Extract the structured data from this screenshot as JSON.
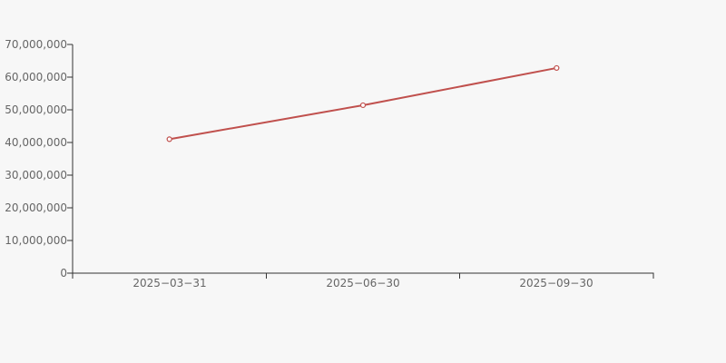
{
  "page": {
    "background_color": "#f7f7f7"
  },
  "chart_data": {
    "type": "line",
    "categories": [
      "2025−03−31",
      "2025−06−30",
      "2025−09−30"
    ],
    "values": [
      41000000,
      51400000,
      62800000
    ],
    "y_tick_labels": [
      "70,000,000",
      "60,000,000",
      "50,000,000",
      "40,000,000",
      "30,000,000",
      "20,000,000",
      "10,000,000",
      "0"
    ],
    "ylim": [
      0,
      70000000
    ],
    "y_tick_step": 10000000,
    "grid": false,
    "legend": false,
    "marker": "hollow-circle",
    "colors": {
      "line": "#c0504d",
      "marker_fill": "#ffffff",
      "axis": "#333333",
      "tick_label": "#666666",
      "background": "#f7f7f7"
    }
  }
}
